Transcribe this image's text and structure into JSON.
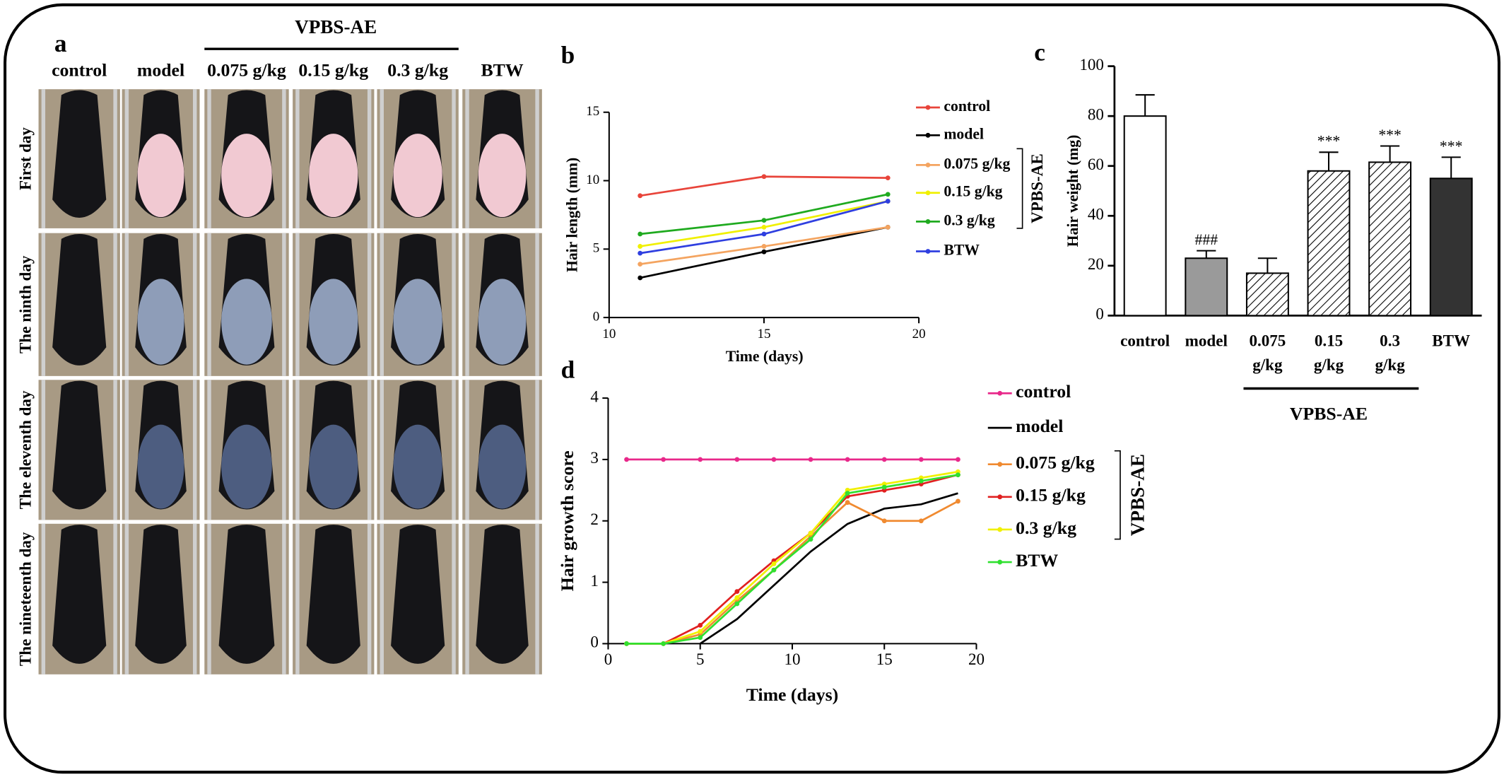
{
  "figure": {
    "panel_a": {
      "panel_label": "a",
      "group_label": "VPBS-AE",
      "columns": [
        "control",
        "model",
        "0.075 g/kg",
        "0.15 g/kg",
        "0.3 g/kg",
        "BTW"
      ],
      "rows": [
        "First day",
        "The ninth day",
        "The eleventh day",
        "The nineteenth day"
      ]
    }
  },
  "chart_data": [
    {
      "type": "line",
      "panel_label": "b",
      "xlabel": "Time (days)",
      "ylabel": "Hair length (mm)",
      "x": [
        11,
        15,
        19
      ],
      "xlim": [
        10,
        20
      ],
      "xticks": [
        10,
        15,
        20
      ],
      "ylim": [
        0,
        15
      ],
      "yticks": [
        0,
        5,
        10,
        15
      ],
      "legend_group": "VPBS-AE",
      "series": [
        {
          "name": "control",
          "color": "#e8443a",
          "values": [
            8.9,
            10.3,
            10.2
          ]
        },
        {
          "name": "model",
          "color": "#000000",
          "values": [
            2.9,
            4.8,
            6.6
          ]
        },
        {
          "name": "0.075 g/kg",
          "color": "#f4a460",
          "values": [
            3.9,
            5.2,
            6.6
          ]
        },
        {
          "name": "0.15 g/kg",
          "color": "#f0f000",
          "values": [
            5.2,
            6.6,
            8.5
          ]
        },
        {
          "name": "0.3 g/kg",
          "color": "#1faa1f",
          "values": [
            6.1,
            7.1,
            9.0
          ]
        },
        {
          "name": "BTW",
          "color": "#2f3fe0",
          "values": [
            4.7,
            6.1,
            8.5
          ]
        }
      ]
    },
    {
      "type": "bar",
      "panel_label": "c",
      "ylabel": "Hair weight (mg)",
      "categories": [
        "control",
        "model",
        "0.075 g/kg",
        "0.15 g/kg",
        "0.3 g/kg",
        "BTW"
      ],
      "values": [
        80,
        23,
        17,
        58,
        61.5,
        55
      ],
      "errors": [
        8.5,
        3,
        6,
        7.5,
        6.5,
        8.5
      ],
      "colors": [
        "#ffffff",
        "#9a9a9a",
        "#ffffff",
        "#ffffff",
        "#ffffff",
        "#333333"
      ],
      "hatch": [
        false,
        false,
        true,
        true,
        true,
        false
      ],
      "ylim": [
        0,
        100
      ],
      "yticks": [
        0,
        20,
        40,
        60,
        80,
        100
      ],
      "group_label": "VPBS-AE",
      "annotations": [
        {
          "category": "model",
          "text": "###"
        },
        {
          "category": "0.15 g/kg",
          "text": "***"
        },
        {
          "category": "0.3 g/kg",
          "text": "***"
        },
        {
          "category": "BTW",
          "text": "***"
        }
      ]
    },
    {
      "type": "line",
      "panel_label": "d",
      "xlabel": "Time (days)",
      "ylabel": "Hair growth score",
      "x": [
        1,
        3,
        5,
        7,
        9,
        11,
        13,
        15,
        17,
        19
      ],
      "xlim": [
        0,
        20
      ],
      "xticks": [
        0,
        5,
        10,
        15,
        20
      ],
      "ylim": [
        0,
        4
      ],
      "yticks": [
        0,
        1,
        2,
        3,
        4
      ],
      "legend_group": "VPBS-AE",
      "series": [
        {
          "name": "control",
          "color": "#e8288a",
          "values": [
            3,
            3,
            3,
            3,
            3,
            3,
            3,
            3,
            3,
            3
          ]
        },
        {
          "name": "model",
          "color": "#000000",
          "marker": false,
          "values": [
            null,
            null,
            0,
            0.4,
            0.95,
            1.5,
            1.95,
            2.2,
            2.27,
            2.45
          ]
        },
        {
          "name": "0.075 g/kg",
          "color": "#f08a30",
          "values": [
            0,
            0,
            0.15,
            0.7,
            1.2,
            1.75,
            2.3,
            2.0,
            2.0,
            2.32
          ]
        },
        {
          "name": "0.15 g/kg",
          "color": "#e02020",
          "values": [
            0,
            0,
            0.3,
            0.85,
            1.35,
            1.8,
            2.4,
            2.5,
            2.6,
            2.75
          ]
        },
        {
          "name": "0.3 g/kg",
          "color": "#f0f000",
          "values": [
            0,
            0,
            0.2,
            0.75,
            1.3,
            1.8,
            2.5,
            2.6,
            2.7,
            2.8
          ]
        },
        {
          "name": "BTW",
          "color": "#30e030",
          "values": [
            0,
            0,
            0.1,
            0.65,
            1.2,
            1.7,
            2.45,
            2.55,
            2.65,
            2.75
          ]
        }
      ]
    }
  ]
}
